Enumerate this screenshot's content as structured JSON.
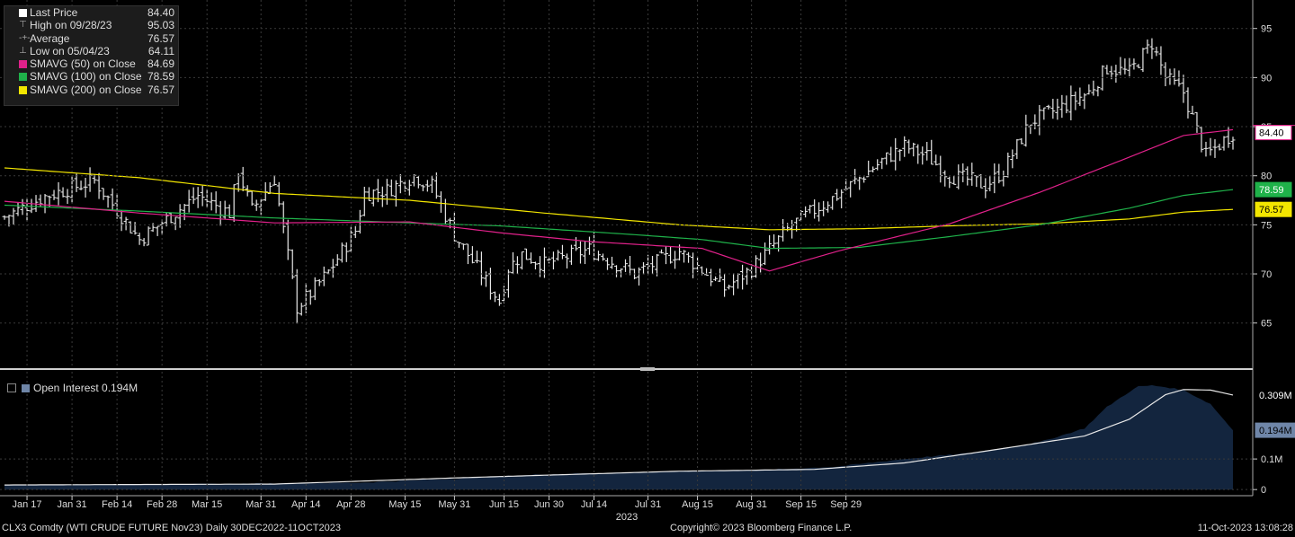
{
  "chart_data": [
    {
      "type": "line",
      "panel": "price",
      "legend": [
        {
          "label": "Last Price",
          "value": "84.40",
          "color": "#ffffff"
        },
        {
          "label": "High on 09/28/23",
          "value": "95.03",
          "color": "#aaaaaa"
        },
        {
          "label": "Average",
          "value": "76.57",
          "color": "#aaaaaa"
        },
        {
          "label": "Low on 05/04/23",
          "value": "64.11",
          "color": "#aaaaaa"
        },
        {
          "label": "SMAVG (50)  on Close",
          "value": "84.69",
          "color": "#e0218a"
        },
        {
          "label": "SMAVG (100)  on Close",
          "value": "78.59",
          "color": "#1fb24a"
        },
        {
          "label": "SMAVG (200)  on Close",
          "value": "76.57",
          "color": "#f3e600"
        }
      ],
      "x_ticks": [
        "Jan 17",
        "Jan 31",
        "Feb 14",
        "Feb 28",
        "Mar 15",
        "Mar 31",
        "Apr 14",
        "Apr 28",
        "May 15",
        "May 31",
        "Jun 15",
        "Jun 30",
        "Jul 14",
        "Jul 31",
        "Aug 15",
        "Aug 31",
        "Sep 15",
        "Sep 29"
      ],
      "year_label": "2023",
      "y_ticks": [
        65,
        70,
        75,
        80,
        85,
        90,
        95
      ],
      "ylim": [
        60.4,
        97.9
      ],
      "grid": true,
      "value_tags": [
        {
          "text": "84.40",
          "value": 84.4,
          "color": "#ffffff",
          "text_color": "#000000",
          "border": "#e0218a"
        },
        {
          "text": "78.59",
          "value": 78.59,
          "color": "#1fb24a",
          "text_color": "#ffffff"
        },
        {
          "text": "76.57",
          "value": 76.57,
          "color": "#f3e600",
          "text_color": "#000000"
        }
      ],
      "price_anchors": {
        "days": [
          0,
          9,
          20,
          30,
          43,
          50,
          52,
          55,
          60,
          65,
          68,
          72,
          78,
          80,
          85,
          91,
          95,
          100,
          110,
          112,
          115,
          120,
          130,
          140,
          150,
          160,
          166,
          175,
          185,
          195,
          200,
          205,
          210,
          215,
          218,
          222,
          228,
          235,
          241,
          245,
          250,
          255,
          258,
          262,
          267,
          273
        ],
        "close": [
          75.8,
          77.9,
          79.5,
          73.5,
          78.0,
          76.2,
          80.5,
          76.5,
          79.7,
          66.6,
          68.0,
          70.2,
          74.4,
          78.2,
          78.5,
          80.0,
          79.0,
          74.0,
          67.2,
          70.6,
          72.0,
          71.0,
          72.5,
          70.0,
          72.3,
          68.5,
          70.5,
          75.0,
          78.0,
          81.5,
          83.0,
          82.0,
          80.0,
          79.5,
          79.0,
          80.5,
          85.5,
          87.0,
          88.5,
          91.0,
          90.5,
          93.5,
          90.0,
          88.5,
          82.0,
          84.4
        ]
      },
      "sma50_anchors": {
        "days": [
          0,
          30,
          60,
          90,
          110,
          130,
          155,
          170,
          185,
          210,
          230,
          250,
          262,
          273
        ],
        "values": [
          77.4,
          76.2,
          75.2,
          75.3,
          74.2,
          73.3,
          72.6,
          70.3,
          72.3,
          75.1,
          78.3,
          81.9,
          84.1,
          84.69
        ]
      },
      "sma100_anchors": {
        "days": [
          0,
          30,
          60,
          90,
          110,
          140,
          155,
          170,
          190,
          210,
          230,
          250,
          262,
          273
        ],
        "values": [
          77.0,
          76.4,
          75.7,
          75.2,
          74.9,
          74.0,
          73.5,
          72.6,
          72.7,
          73.8,
          75.0,
          76.7,
          78.0,
          78.59
        ]
      },
      "sma200_anchors": {
        "days": [
          0,
          30,
          60,
          90,
          120,
          150,
          170,
          190,
          210,
          230,
          250,
          262,
          273
        ],
        "values": [
          80.8,
          79.8,
          78.2,
          77.5,
          76.2,
          75.0,
          74.5,
          74.6,
          74.9,
          75.1,
          75.6,
          76.3,
          76.57
        ]
      }
    },
    {
      "type": "area",
      "panel": "open_interest",
      "legend_label": "Open Interest 0.194M",
      "y_ticks": [
        {
          "value": 0.0,
          "label": "0"
        },
        {
          "value": 0.1,
          "label": "0.1M"
        }
      ],
      "value_tags": [
        {
          "text": "0.309M",
          "value": 0.309,
          "color": "#000000",
          "text_color": "#ffffff"
        },
        {
          "text": "0.194M",
          "value": 0.194,
          "color": "#6f86a8",
          "text_color": "#000000"
        }
      ],
      "ylim": [
        -0.02,
        0.385
      ],
      "area_color": "#13253e",
      "area_anchors": {
        "days": [
          0,
          40,
          80,
          100,
          120,
          150,
          170,
          185,
          200,
          215,
          230,
          240,
          245,
          250,
          252,
          255,
          258,
          262,
          268,
          273
        ],
        "values": [
          0.015,
          0.017,
          0.023,
          0.036,
          0.05,
          0.06,
          0.065,
          0.075,
          0.1,
          0.12,
          0.155,
          0.2,
          0.27,
          0.32,
          0.337,
          0.34,
          0.335,
          0.325,
          0.28,
          0.194
        ]
      },
      "avg_line_anchors": {
        "days": [
          0,
          60,
          100,
          150,
          180,
          200,
          220,
          240,
          250,
          258,
          262,
          268,
          273
        ],
        "values": [
          0.015,
          0.018,
          0.038,
          0.06,
          0.066,
          0.087,
          0.13,
          0.175,
          0.23,
          0.31,
          0.327,
          0.325,
          0.309
        ]
      }
    }
  ],
  "footer": {
    "security": "CLX3 Comdty (WTI CRUDE FUTURE  Nov23)  Daily 30DEC2022-11OCT2023",
    "copyright": "Copyright© 2023 Bloomberg Finance L.P.",
    "timestamp": "11-Oct-2023 13:08:28"
  }
}
